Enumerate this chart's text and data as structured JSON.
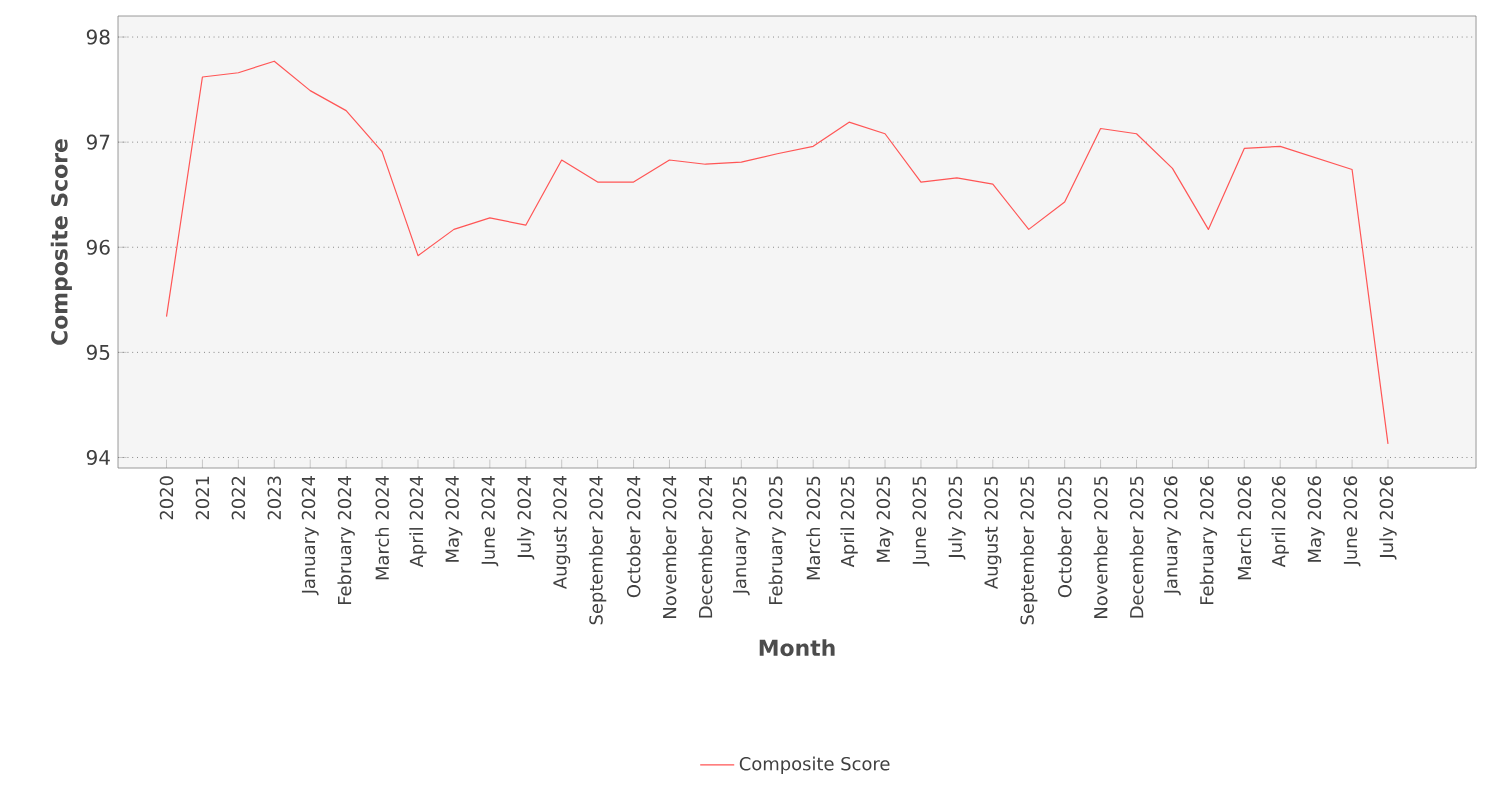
{
  "chart_data": {
    "type": "line",
    "xlabel": "Month",
    "ylabel": "Composite Score",
    "categories": [
      "2020",
      "2021",
      "2022",
      "2023",
      "January 2024",
      "February 2024",
      "March 2024",
      "April 2024",
      "May 2024",
      "June 2024",
      "July 2024",
      "August 2024",
      "September 2024",
      "October 2024",
      "November 2024",
      "December 2024",
      "January 2025",
      "February 2025",
      "March 2025",
      "April 2025",
      "May 2025",
      "June 2025",
      "July 2025",
      "August 2025",
      "September 2025",
      "October 2025",
      "November 2025",
      "December 2025",
      "January 2026",
      "February 2026",
      "March 2026",
      "April 2026",
      "May 2026",
      "June 2026",
      "July 2026"
    ],
    "series": [
      {
        "name": "Composite Score",
        "color": "#ff5555",
        "values": [
          95.34,
          97.62,
          97.66,
          97.77,
          97.49,
          97.3,
          96.91,
          95.92,
          96.17,
          96.28,
          96.21,
          96.83,
          96.62,
          96.62,
          96.83,
          96.79,
          96.81,
          96.89,
          96.96,
          97.19,
          97.08,
          96.62,
          96.66,
          96.6,
          96.17,
          96.43,
          97.13,
          97.08,
          96.75,
          96.17,
          96.94,
          96.96,
          96.85,
          96.74,
          94.13
        ]
      }
    ],
    "ylim": [
      93.9,
      98.2
    ],
    "yticks": [
      94,
      95,
      96,
      97,
      98
    ],
    "grid": "y",
    "legend": "bottom",
    "marker": "none",
    "line_style": "solid"
  }
}
